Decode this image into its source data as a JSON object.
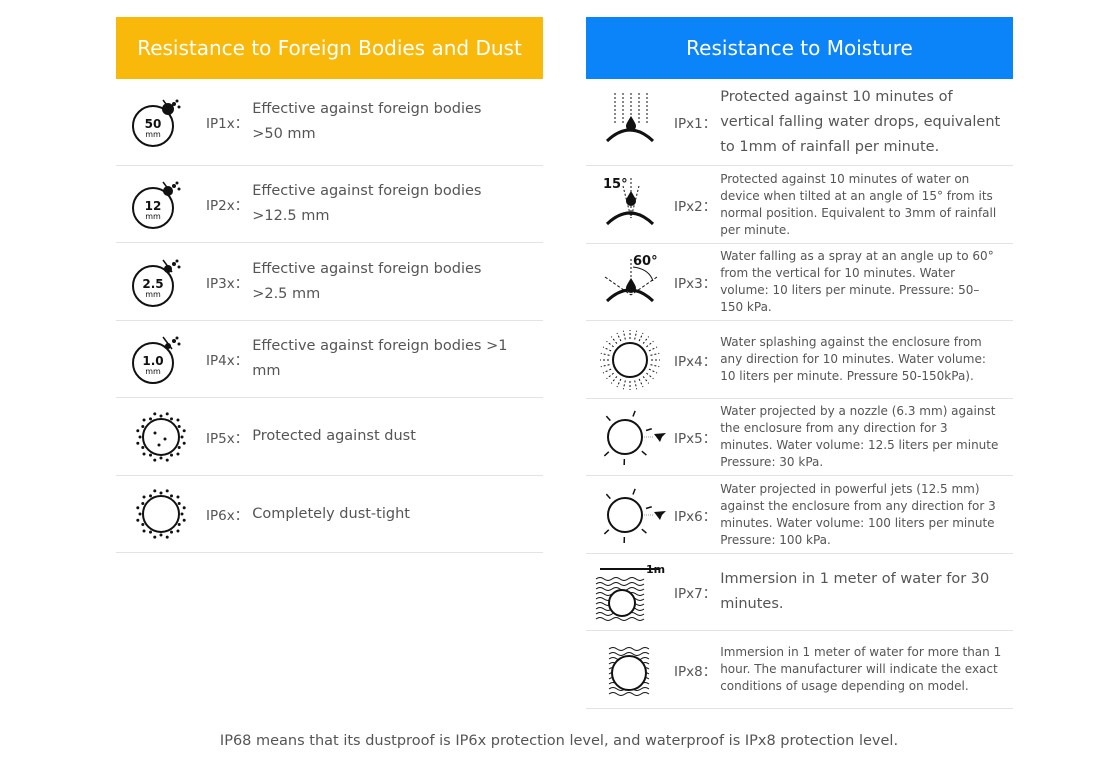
{
  "dust": {
    "title": "Resistance to Foreign Bodies and Dust",
    "color": "#f9b90a",
    "items": [
      {
        "code": "IP1x：",
        "desc": "Effective against foreign bodies >50 mm",
        "icon": "50mm-ball-icon",
        "label": "50"
      },
      {
        "code": "IP2x：",
        "desc": "Effective against foreign bodies >12.5 mm",
        "icon": "12mm-ball-icon",
        "label": "12"
      },
      {
        "code": "IP3x：",
        "desc": "Effective against foreign bodies >2.5 mm",
        "icon": "2.5mm-ball-icon",
        "label": "2.5"
      },
      {
        "code": "IP4x：",
        "desc": "Effective against foreign bodies >1 mm",
        "icon": "1mm-ball-icon",
        "label": "1.0"
      },
      {
        "code": "IP5x：",
        "desc": "Protected against dust",
        "icon": "dust-protected-icon"
      },
      {
        "code": "IP6x：",
        "desc": "Completely dust-tight",
        "icon": "dust-tight-icon"
      }
    ]
  },
  "moisture": {
    "title": "Resistance to Moisture",
    "color": "#0a84f8",
    "items": [
      {
        "code": "IPx1：",
        "desc": "Protected against 10 minutes of vertical falling water drops, equivalent to 1mm of rainfall per minute.",
        "icon": "vertical-drops-icon",
        "small": false
      },
      {
        "code": "IPx2：",
        "desc": "Protected against 10 minutes of water on device when tilted at an angle of 15° from its normal position. Equivalent to 3mm of rainfall per minute.",
        "icon": "tilted-drops-15-icon",
        "label": "15°",
        "small": true
      },
      {
        "code": "IPx3：",
        "desc": "Water falling as a spray at an angle up to 60° from the vertical for 10 minutes. Water volume: 10 liters per minute. Pressure: 50–150 kPa.",
        "icon": "spray-60-icon",
        "label": "60°",
        "small": true
      },
      {
        "code": "IPx4：",
        "desc": "Water splashing against the enclosure from any direction for 10 minutes. Water volume: 10 liters per minute. Pressure 50-150kPa).",
        "icon": "splash-icon",
        "small": true
      },
      {
        "code": "IPx5：",
        "desc": "Water projected by a nozzle (6.3 mm) against the enclosure from any direction for 3 minutes. Water volume: 12.5 liters per minute Pressure: 30 kPa.",
        "icon": "nozzle-jet-icon",
        "small": true
      },
      {
        "code": "IPx6：",
        "desc": "Water projected in powerful jets (12.5 mm) against the enclosure from any direction for 3 minutes. Water volume: 100 liters per minute Pressure: 100 kPa.",
        "icon": "powerful-jet-icon",
        "small": true
      },
      {
        "code": "IPx7：",
        "desc": "Immersion in 1 meter of water for 30 minutes.",
        "icon": "immersion-1m-icon",
        "label": "1m",
        "small": false
      },
      {
        "code": "IPx8：",
        "desc": "Immersion in 1 meter of water for more than 1 hour. The manufacturer will indicate the exact conditions of usage depending on model.",
        "icon": "submersion-icon",
        "small": true
      }
    ]
  },
  "footer": "IP68 means that its dustproof is IP6x protection level, and waterproof is IPx8 protection level."
}
